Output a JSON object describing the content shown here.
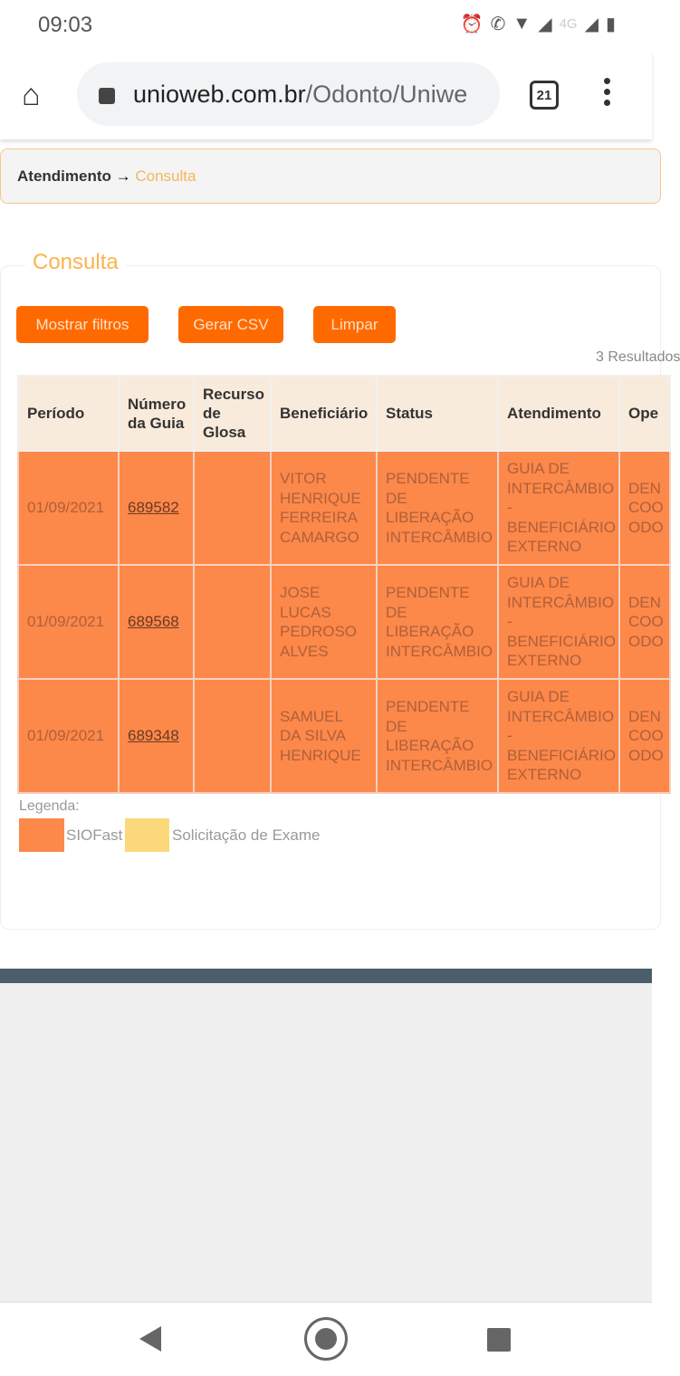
{
  "status_bar": {
    "time": "09:03",
    "icons": [
      "alarm-icon",
      "wifi-call-4g-icon",
      "wifi-icon",
      "signal-icon",
      "4g-signal-icon",
      "battery-icon"
    ],
    "network_label": "4G"
  },
  "browser": {
    "url_domain": "unioweb.com.br",
    "url_path": "/Odonto/Uniwe",
    "tab_count": "21"
  },
  "breadcrumb": {
    "parent": "Atendimento",
    "arrow": "→",
    "current": "Consulta"
  },
  "panel": {
    "title": "Consulta",
    "buttons": {
      "filters": "Mostrar filtros",
      "csv": "Gerar CSV",
      "clear": "Limpar"
    },
    "results": "3 Resultados"
  },
  "table": {
    "headers": [
      "Período",
      "Número da Guia",
      "Recurso de Glosa",
      "Beneficiário",
      "Status",
      "Atendimento",
      "Ope"
    ],
    "rows": [
      {
        "periodo": "01/09/2021",
        "guia": "689582",
        "recurso": "",
        "beneficiario": "VITOR HENRIQUE FERREIRA CAMARGO",
        "status": "PENDENTE DE LIBERAÇÃO INTERCÂMBIO",
        "atendimento": "GUIA DE INTERCÂMBIO - BENEFICIÁRIO EXTERNO",
        "operadora": "DEN COO ODO"
      },
      {
        "periodo": "01/09/2021",
        "guia": "689568",
        "recurso": "",
        "beneficiario": "JOSE LUCAS PEDROSO ALVES",
        "status": "PENDENTE DE LIBERAÇÃO INTERCÂMBIO",
        "atendimento": "GUIA DE INTERCÂMBIO - BENEFICIÁRIO EXTERNO",
        "operadora": "DEN COO ODO"
      },
      {
        "periodo": "01/09/2021",
        "guia": "689348",
        "recurso": "",
        "beneficiario": "SAMUEL DA SILVA HENRIQUE",
        "status": "PENDENTE DE LIBERAÇÃO INTERCÂMBIO",
        "atendimento": "GUIA DE INTERCÂMBIO - BENEFICIÁRIO EXTERNO",
        "operadora": "DEN COO ODO"
      }
    ]
  },
  "legend": {
    "title": "Legenda:",
    "items": [
      {
        "label": "SIOFast",
        "color": "#fc884a"
      },
      {
        "label": "Solicitação de Exame",
        "color": "#fbd97a"
      }
    ]
  }
}
